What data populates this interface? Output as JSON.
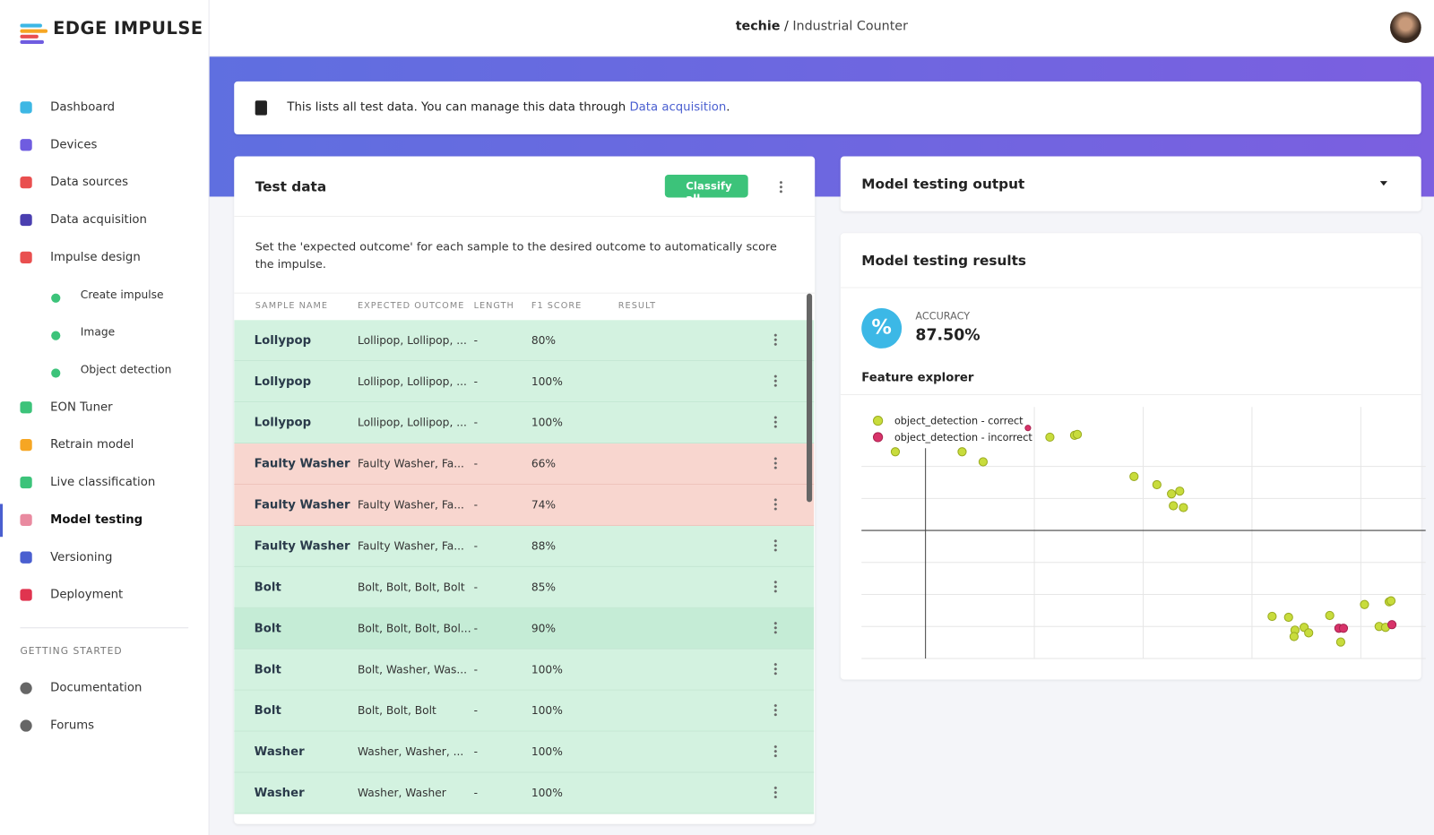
{
  "header": {
    "logo": "EDGE IMPULSE",
    "user": "techie",
    "separator": "/",
    "project": "Industrial Counter"
  },
  "sidebar": {
    "items": [
      "Dashboard",
      "Devices",
      "Data sources",
      "Data acquisition",
      "Impulse design",
      "Create impulse",
      "Image",
      "Object detection",
      "EON Tuner",
      "Retrain model",
      "Live classification",
      "Model testing",
      "Versioning",
      "Deployment"
    ],
    "section": "GETTING STARTED",
    "more": [
      "Documentation",
      "Forums"
    ]
  },
  "notice": {
    "text": "This lists all test data. You can manage this data through",
    "link": "Data acquisition",
    "end": "."
  },
  "test_data": {
    "title": "Test data",
    "button": "Classify all",
    "description": "Set the 'expected outcome' for each sample to the desired outcome to automatically score the impulse.",
    "columns": [
      "SAMPLE NAME",
      "EXPECTED OUTCOME",
      "LENGTH",
      "F1 SCORE",
      "RESULT"
    ],
    "rows": [
      [
        "Lollypop",
        "Lollipop, Lollipop, ...",
        "-",
        "80%"
      ],
      [
        "Lollypop",
        "Lollipop, Lollipop, ...",
        "-",
        "100%"
      ],
      [
        "Lollypop",
        "Lollipop, Lollipop, ...",
        "-",
        "100%"
      ],
      [
        "Faulty Washer",
        "Faulty Washer, Fa...",
        "-",
        "66%"
      ],
      [
        "Faulty Washer",
        "Faulty Washer, Fa...",
        "-",
        "74%"
      ],
      [
        "Faulty Washer",
        "Faulty Washer, Fa...",
        "-",
        "88%"
      ],
      [
        "Bolt",
        "Bolt, Bolt, Bolt, Bolt",
        "-",
        "85%"
      ],
      [
        "Bolt",
        "Bolt, Bolt, Bolt, Bol...",
        "-",
        "90%"
      ],
      [
        "Bolt",
        "Bolt, Washer, Was...",
        "-",
        "100%"
      ],
      [
        "Bolt",
        "Bolt, Bolt, Bolt",
        "-",
        "100%"
      ],
      [
        "Washer",
        "Washer, Washer, ...",
        "-",
        "100%"
      ],
      [
        "Washer",
        "Washer, Washer",
        "-",
        "100%"
      ]
    ]
  },
  "output": {
    "title": "Model testing output"
  },
  "results": {
    "title": "Model testing results",
    "accuracy_icon": "%",
    "accuracy_label": "ACCURACY",
    "accuracy": "87.50%",
    "feature_explorer": "Feature explorer",
    "legend": [
      "object_detection - correct",
      "object_detection - incorrect"
    ]
  }
}
